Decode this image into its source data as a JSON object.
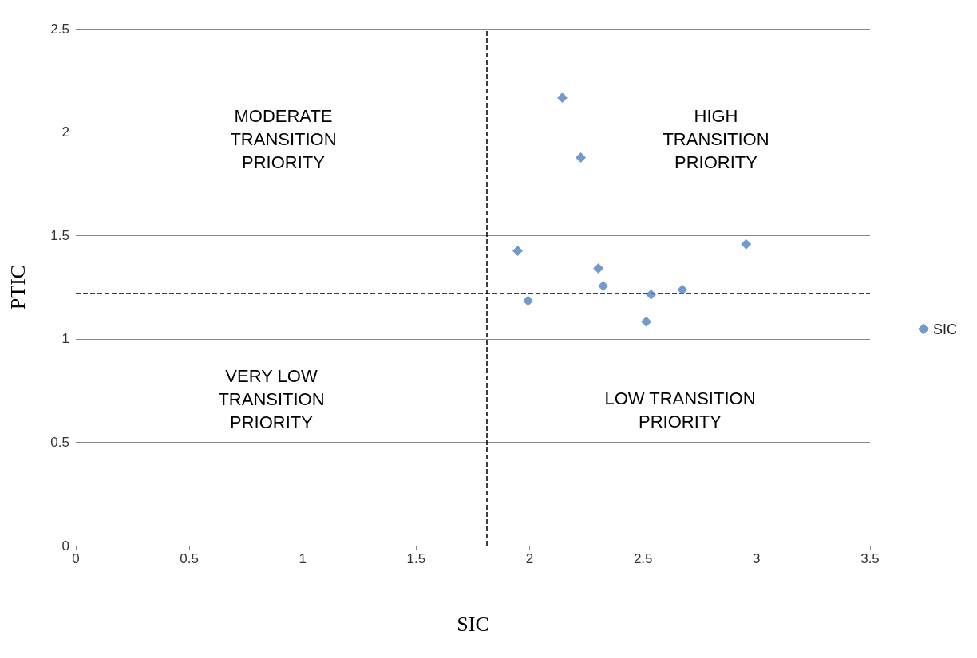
{
  "chart_data": {
    "type": "scatter",
    "xlabel": "SIC",
    "ylabel": "PTIC",
    "x": [
      2.144,
      2.225,
      1.947,
      1.993,
      2.303,
      2.324,
      2.535,
      2.514,
      2.673,
      2.954
    ],
    "series": [
      {
        "name": "SIC",
        "color": "#4f81bd",
        "values": [
          2.166,
          1.877,
          1.426,
          1.183,
          1.341,
          1.256,
          1.214,
          1.083,
          1.237,
          1.457
        ]
      }
    ],
    "xlim": [
      0,
      3.5
    ],
    "xticks": [
      0,
      0.5,
      1,
      1.5,
      2,
      2.5,
      3,
      3.5
    ],
    "ylim": [
      0,
      2.5
    ],
    "yticks": [
      0,
      0.5,
      1,
      1.5,
      2,
      2.5
    ],
    "grid": "y",
    "legend": "right",
    "marker": "diamond",
    "ref_lines": [
      {
        "axis": "x",
        "value": 1.806,
        "line_style": "dashed",
        "color": "#000000"
      },
      {
        "axis": "y",
        "value": 1.218,
        "line_style": "dashed",
        "color": "#000000"
      }
    ],
    "annotations": [
      "MODERATE\nTRANSITION\nPRIORITY",
      "HIGH\nTRANSITION\nPRIORITY",
      "VERY LOW\nTRANSITION\nPRIORITY",
      "LOW TRANSITION\nPRIORITY"
    ]
  }
}
